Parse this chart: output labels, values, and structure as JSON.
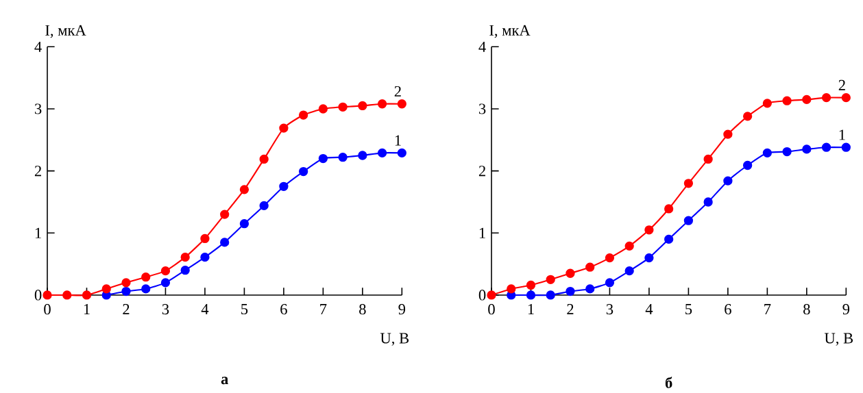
{
  "chart_data": [
    {
      "type": "line",
      "title": "а",
      "xlabel": "U, В",
      "ylabel": "I, мкА",
      "xlim": [
        0,
        9
      ],
      "ylim": [
        0,
        4
      ],
      "xticks": [
        0,
        1,
        2,
        3,
        4,
        5,
        6,
        7,
        8,
        9
      ],
      "yticks": [
        0,
        1,
        2,
        3,
        4
      ],
      "marker": "circle",
      "line_style": "solid",
      "series": [
        {
          "name": "1",
          "color": "#0000ff",
          "x": [
            1.5,
            2,
            2.5,
            3,
            3.5,
            4,
            4.5,
            5,
            5.5,
            6,
            6.5,
            7,
            7.5,
            8,
            8.5,
            9
          ],
          "values": [
            0,
            0.06,
            0.1,
            0.2,
            0.4,
            0.61,
            0.85,
            1.15,
            1.44,
            1.75,
            1.99,
            2.2,
            2.22,
            2.25,
            2.29,
            2.29
          ]
        },
        {
          "name": "2",
          "color": "#ff0000",
          "x": [
            0,
            0.5,
            1,
            1.5,
            2,
            2.5,
            3,
            3.5,
            4,
            4.5,
            5,
            5.5,
            6,
            6.5,
            7,
            7.5,
            8,
            8.5,
            9
          ],
          "values": [
            0,
            0,
            0,
            0.1,
            0.2,
            0.29,
            0.39,
            0.61,
            0.91,
            1.3,
            1.7,
            2.19,
            2.69,
            2.9,
            3.0,
            3.03,
            3.05,
            3.08,
            3.08
          ]
        }
      ]
    },
    {
      "type": "line",
      "title": "б",
      "xlabel": "U, В",
      "ylabel": "I, мкА",
      "xlim": [
        0,
        9
      ],
      "ylim": [
        0,
        4
      ],
      "xticks": [
        0,
        1,
        2,
        3,
        4,
        5,
        6,
        7,
        8,
        9
      ],
      "yticks": [
        0,
        1,
        2,
        3,
        4
      ],
      "marker": "circle",
      "line_style": "solid",
      "series": [
        {
          "name": "1",
          "color": "#0000ff",
          "x": [
            0.5,
            1,
            1.5,
            2,
            2.5,
            3,
            3.5,
            4,
            4.5,
            5,
            5.5,
            6,
            6.5,
            7,
            7.5,
            8,
            8.5,
            9
          ],
          "values": [
            0,
            0,
            0,
            0.06,
            0.1,
            0.2,
            0.39,
            0.6,
            0.9,
            1.2,
            1.5,
            1.84,
            2.09,
            2.29,
            2.31,
            2.35,
            2.38,
            2.38
          ]
        },
        {
          "name": "2",
          "color": "#ff0000",
          "x": [
            0,
            0.5,
            1,
            1.5,
            2,
            2.5,
            3,
            3.5,
            4,
            4.5,
            5,
            5.5,
            6,
            6.5,
            7,
            7.5,
            8,
            8.5,
            9
          ],
          "values": [
            0,
            0.1,
            0.16,
            0.25,
            0.35,
            0.45,
            0.6,
            0.79,
            1.05,
            1.39,
            1.8,
            2.19,
            2.59,
            2.88,
            3.09,
            3.13,
            3.15,
            3.18,
            3.18
          ]
        }
      ]
    }
  ]
}
